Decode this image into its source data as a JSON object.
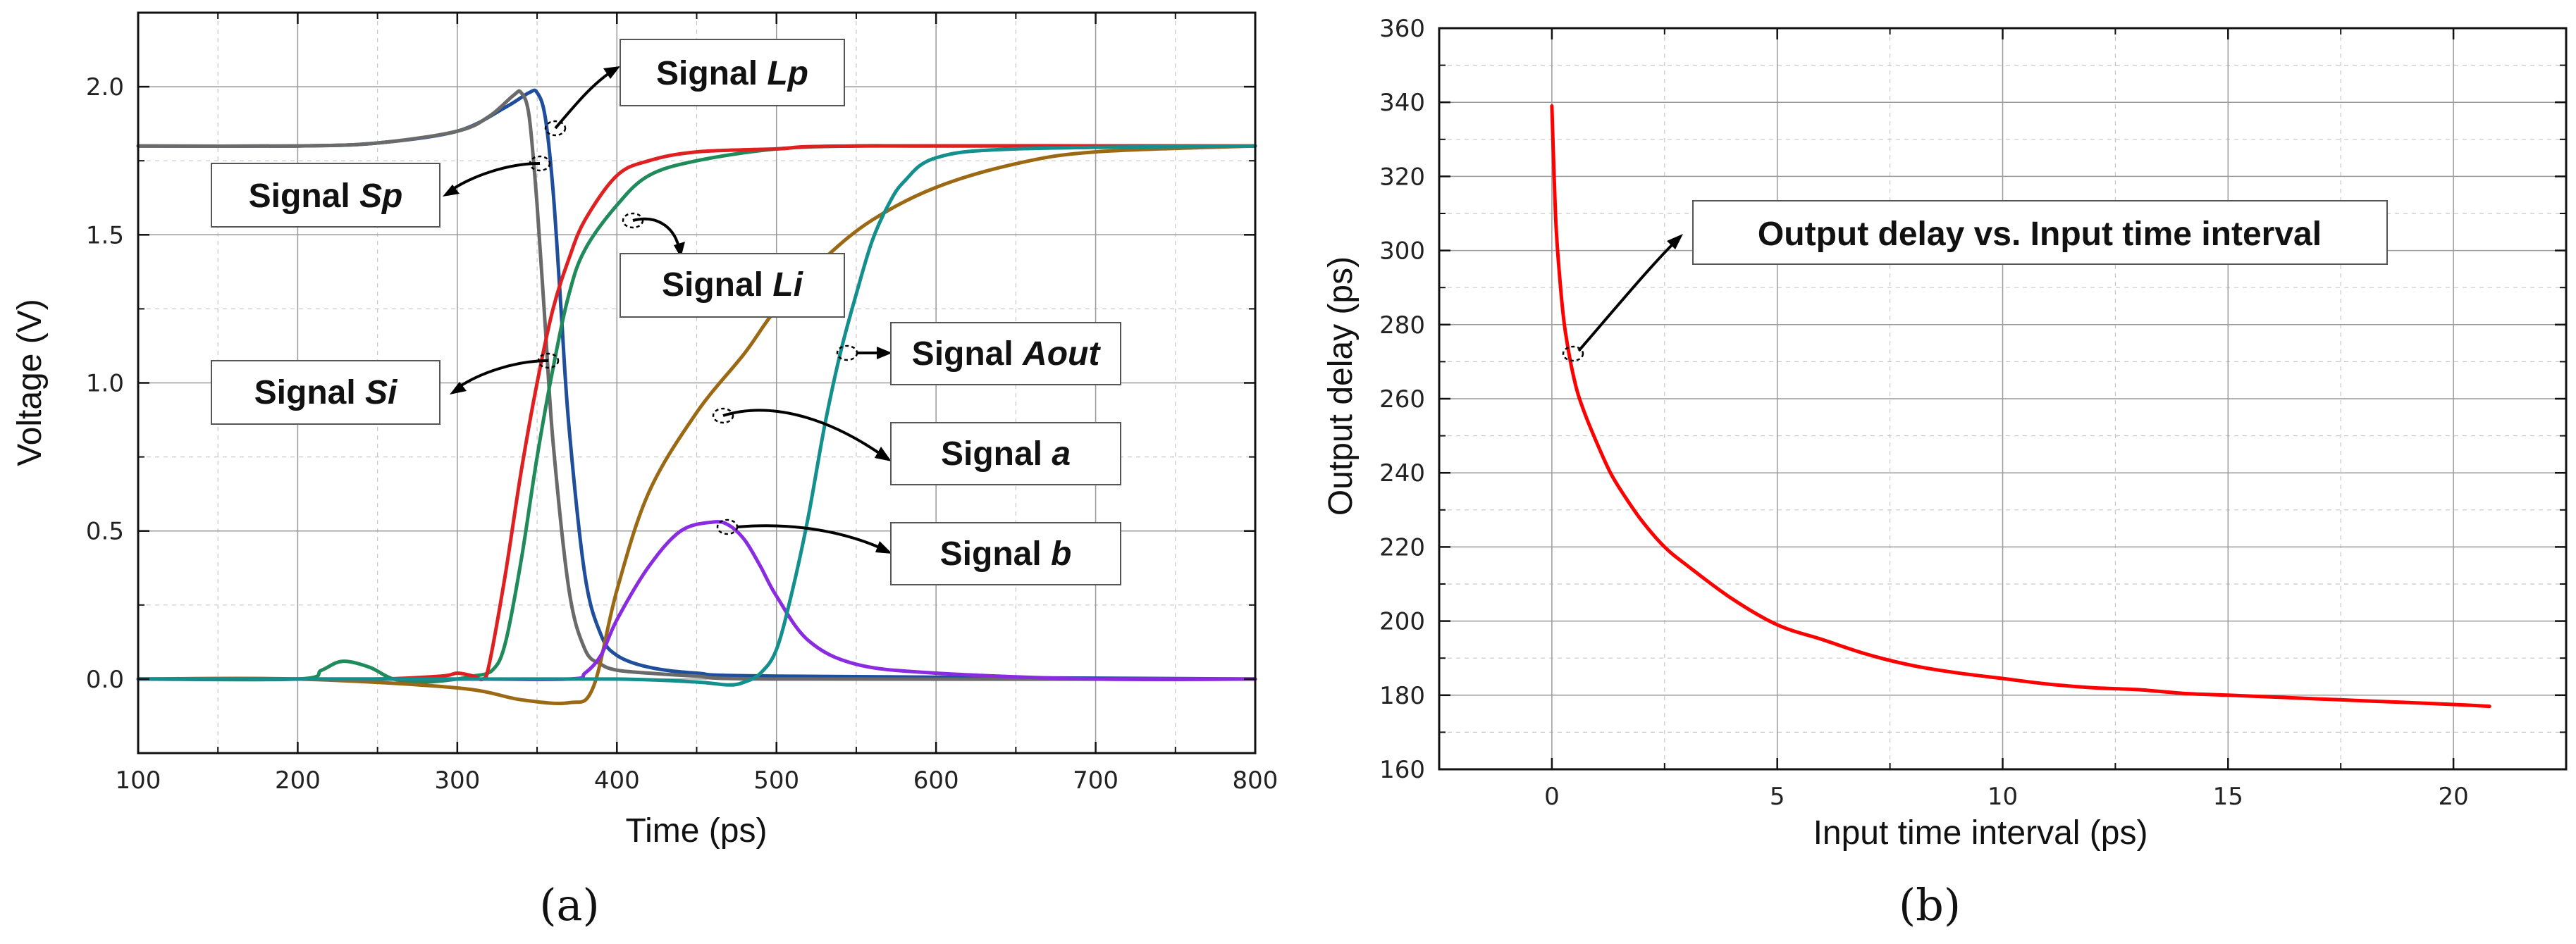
{
  "chart_data": [
    {
      "type": "line",
      "panel_label": "(a)",
      "xlabel": "Time (ps)",
      "ylabel": "Voltage (V)",
      "xlim": [
        100,
        800
      ],
      "ylim": [
        -0.25,
        2.25
      ],
      "xticks": [
        "100",
        "200",
        "300",
        "400",
        "500",
        "600",
        "700",
        "800"
      ],
      "yticks": [
        "0.0",
        "0.5",
        "1.0",
        "1.5",
        "2.0"
      ],
      "grid": true,
      "series": [
        {
          "name": "Signal Lp",
          "color": "#1f4e9c",
          "x": [
            100,
            200,
            250,
            300,
            330,
            345,
            350,
            355,
            360,
            365,
            370,
            380,
            390,
            400,
            420,
            450,
            500,
            800
          ],
          "y": [
            1.8,
            1.8,
            1.81,
            1.85,
            1.93,
            1.98,
            1.98,
            1.9,
            1.65,
            1.25,
            0.85,
            0.35,
            0.15,
            0.08,
            0.04,
            0.02,
            0.01,
            0.0
          ]
        },
        {
          "name": "Signal Sp",
          "color": "#6a6a6a",
          "x": [
            100,
            200,
            250,
            300,
            320,
            335,
            340,
            345,
            350,
            355,
            360,
            370,
            380,
            390,
            400,
            420,
            450,
            500,
            800
          ],
          "y": [
            1.8,
            1.8,
            1.81,
            1.85,
            1.9,
            1.97,
            1.98,
            1.9,
            1.6,
            1.2,
            0.8,
            0.3,
            0.1,
            0.05,
            0.03,
            0.02,
            0.01,
            0.0,
            0.0
          ]
        },
        {
          "name": "Signal Li",
          "color": "#1f8a5a",
          "x": [
            100,
            200,
            215,
            228,
            245,
            260,
            280,
            300,
            310,
            322,
            330,
            340,
            350,
            360,
            370,
            380,
            400,
            420,
            450,
            500,
            550,
            600,
            800
          ],
          "y": [
            0.0,
            0.0,
            0.03,
            0.06,
            0.04,
            0.0,
            -0.01,
            0.0,
            0.01,
            0.03,
            0.12,
            0.4,
            0.75,
            1.05,
            1.3,
            1.45,
            1.6,
            1.7,
            1.75,
            1.79,
            1.8,
            1.8,
            1.8
          ]
        },
        {
          "name": "Signal Si",
          "color": "#e02020",
          "x": [
            100,
            200,
            250,
            290,
            300,
            310,
            316,
            320,
            330,
            340,
            350,
            360,
            370,
            380,
            400,
            420,
            450,
            500,
            550,
            800
          ],
          "y": [
            0.0,
            0.0,
            0.0,
            0.01,
            0.02,
            0.01,
            0.0,
            0.05,
            0.35,
            0.7,
            1.0,
            1.25,
            1.42,
            1.55,
            1.7,
            1.75,
            1.78,
            1.79,
            1.8,
            1.8
          ]
        },
        {
          "name": "Signal a",
          "color": "#9b6914",
          "x": [
            100,
            200,
            300,
            340,
            370,
            385,
            400,
            420,
            450,
            480,
            500,
            530,
            560,
            600,
            650,
            700,
            800
          ],
          "y": [
            0.0,
            0.0,
            -0.03,
            -0.07,
            -0.08,
            -0.03,
            0.3,
            0.63,
            0.9,
            1.1,
            1.25,
            1.42,
            1.55,
            1.66,
            1.74,
            1.78,
            1.8
          ]
        },
        {
          "name": "Signal b",
          "color": "#8a2be2",
          "x": [
            100,
            300,
            370,
            380,
            390,
            400,
            420,
            440,
            460,
            470,
            480,
            490,
            500,
            520,
            550,
            600,
            700,
            800
          ],
          "y": [
            0.0,
            0.0,
            0.0,
            0.02,
            0.08,
            0.2,
            0.38,
            0.5,
            0.53,
            0.52,
            0.47,
            0.38,
            0.28,
            0.13,
            0.05,
            0.02,
            0.0,
            0.0
          ]
        },
        {
          "name": "Signal Aout",
          "color": "#13908d",
          "x": [
            100,
            300,
            400,
            450,
            470,
            480,
            490,
            500,
            510,
            520,
            530,
            540,
            550,
            560,
            570,
            580,
            600,
            650,
            800
          ],
          "y": [
            0.0,
            0.0,
            0.0,
            -0.01,
            -0.02,
            -0.01,
            0.02,
            0.1,
            0.3,
            0.55,
            0.85,
            1.1,
            1.3,
            1.48,
            1.6,
            1.68,
            1.76,
            1.79,
            1.8
          ]
        }
      ],
      "annotations": [
        {
          "prefix": "Signal ",
          "name": "Lp"
        },
        {
          "prefix": "Signal ",
          "name": "Sp"
        },
        {
          "prefix": "Signal ",
          "name": "Li"
        },
        {
          "prefix": "Signal ",
          "name": "Si"
        },
        {
          "prefix": "Signal ",
          "name": "Aout"
        },
        {
          "prefix": "Signal ",
          "name": "a"
        },
        {
          "prefix": "Signal ",
          "name": "b"
        }
      ]
    },
    {
      "type": "line",
      "panel_label": "(b)",
      "xlabel": "Input time interval (ps)",
      "ylabel": "Output delay (ps)",
      "xlim": [
        -2.5,
        22.5
      ],
      "ylim": [
        160,
        360
      ],
      "xticks": [
        "0",
        "5",
        "10",
        "15",
        "20"
      ],
      "yticks": [
        "160",
        "180",
        "200",
        "220",
        "240",
        "260",
        "280",
        "300",
        "320",
        "340",
        "360"
      ],
      "grid": true,
      "series": [
        {
          "name": "Output delay vs. Input time interval",
          "color": "#ff0000",
          "x": [
            0,
            0.05,
            0.1,
            0.2,
            0.3,
            0.5,
            0.7,
            1.0,
            1.3,
            1.6,
            2.0,
            2.5,
            3.0,
            4.0,
            5.0,
            6.0,
            7.0,
            8.0,
            9.0,
            10.0,
            11.0,
            12.0,
            13.0,
            14.0,
            15.0,
            16.0,
            17.0,
            18.0,
            19.0,
            20.0,
            20.8
          ],
          "y": [
            339,
            320,
            305,
            289,
            278,
            265,
            257,
            248,
            240,
            234,
            227,
            220,
            215,
            206,
            199,
            195,
            191,
            188,
            186,
            184.5,
            183,
            182,
            181.5,
            180.5,
            180,
            179.5,
            179,
            178.5,
            178,
            177.5,
            177
          ]
        }
      ],
      "annotation": "Output delay vs. Input time interval"
    }
  ]
}
